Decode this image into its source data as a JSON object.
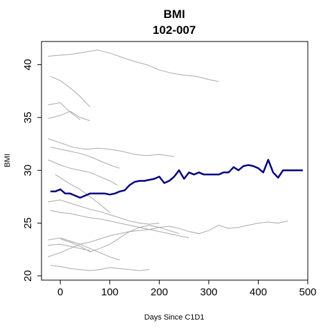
{
  "chart_data": {
    "type": "line",
    "title": "BMI",
    "subtitle": "102-007",
    "xlabel": "Days Since C1D1",
    "ylabel": "BMI",
    "xlim": [
      -38,
      500
    ],
    "ylim": [
      19.6,
      42.2
    ],
    "xticks": [
      0,
      100,
      200,
      300,
      400,
      500
    ],
    "yticks": [
      20,
      25,
      30,
      35,
      40
    ],
    "grid": false,
    "colors": {
      "highlight": "#000080",
      "background": "#a8a8a8"
    },
    "highlight_series": {
      "name": "102-007",
      "x": [
        -20,
        -10,
        0,
        10,
        20,
        30,
        40,
        50,
        60,
        70,
        80,
        90,
        100,
        110,
        120,
        130,
        140,
        150,
        160,
        170,
        180,
        190,
        200,
        210,
        220,
        230,
        240,
        250,
        260,
        270,
        280,
        290,
        300,
        310,
        320,
        330,
        340,
        350,
        360,
        370,
        380,
        390,
        400,
        410,
        420,
        430,
        440,
        450,
        460,
        470,
        480,
        490
      ],
      "y": [
        28.0,
        28.0,
        28.2,
        27.8,
        27.8,
        27.6,
        27.4,
        27.6,
        27.8,
        27.8,
        27.8,
        27.8,
        27.7,
        27.8,
        28.0,
        28.1,
        28.6,
        28.9,
        29.0,
        29.0,
        29.1,
        29.2,
        29.4,
        28.8,
        29.0,
        29.4,
        30.0,
        29.2,
        29.8,
        29.6,
        29.8,
        29.6,
        29.6,
        29.6,
        29.6,
        29.8,
        29.8,
        30.3,
        30.0,
        30.4,
        30.5,
        30.4,
        30.2,
        29.8,
        31.0,
        29.8,
        29.3,
        30.0,
        30.0,
        30.0,
        30.0,
        30.0
      ]
    },
    "background_series": [
      {
        "x": [
          -25,
          0,
          25,
          50,
          75,
          100,
          125,
          150,
          175,
          200,
          225,
          250,
          275,
          300,
          320
        ],
        "y": [
          40.8,
          40.9,
          41.0,
          41.2,
          41.4,
          41.1,
          40.7,
          40.3,
          40.0,
          39.5,
          39.2,
          39.0,
          38.9,
          38.6,
          38.4
        ]
      },
      {
        "x": [
          -20,
          0,
          20,
          40,
          60
        ],
        "y": [
          38.9,
          38.5,
          37.8,
          37.0,
          36.0
        ]
      },
      {
        "x": [
          -25,
          0,
          20,
          40
        ],
        "y": [
          36.2,
          36.4,
          35.5,
          34.8
        ]
      },
      {
        "x": [
          -25,
          0,
          20,
          40,
          60
        ],
        "y": [
          34.9,
          35.2,
          35.6,
          35.0,
          34.7
        ]
      },
      {
        "x": [
          -25,
          0,
          25,
          50,
          75,
          100,
          125,
          150,
          175,
          200,
          230
        ],
        "y": [
          33.0,
          32.6,
          32.2,
          32.0,
          32.1,
          32.0,
          31.8,
          31.5,
          31.4,
          31.5,
          31.3
        ]
      },
      {
        "x": [
          -20,
          0,
          20,
          40,
          60,
          80,
          100,
          120
        ],
        "y": [
          32.2,
          32.0,
          31.8,
          31.6,
          31.3,
          30.9,
          30.5,
          30.2
        ]
      },
      {
        "x": [
          -25,
          0,
          20,
          40,
          60,
          80,
          100,
          115
        ],
        "y": [
          31.0,
          30.5,
          30.2,
          30.0,
          29.8,
          29.4,
          29.0,
          28.6
        ]
      },
      {
        "x": [
          -10,
          0,
          20,
          40,
          60,
          80,
          100
        ],
        "y": [
          29.6,
          29.3,
          28.7,
          28.2,
          27.5,
          26.8,
          26.0
        ]
      },
      {
        "x": [
          -25,
          0,
          20,
          40,
          60,
          80,
          100,
          120,
          140,
          160,
          180,
          200
        ],
        "y": [
          27.0,
          27.2,
          26.9,
          26.6,
          26.3,
          26.1,
          25.8,
          25.5,
          25.2,
          25.0,
          24.9,
          25.0
        ]
      },
      {
        "x": [
          -20,
          0,
          20,
          40,
          60,
          80,
          100,
          120,
          140,
          160,
          180,
          200,
          220,
          240,
          260
        ],
        "y": [
          26.2,
          26.0,
          25.9,
          25.7,
          25.5,
          25.4,
          25.2,
          25.0,
          24.8,
          24.6,
          24.4,
          24.2,
          24.0,
          23.8,
          23.6
        ]
      },
      {
        "x": [
          -25,
          0,
          20,
          40,
          60,
          80,
          100,
          120,
          140,
          160,
          180,
          200,
          220,
          240,
          260,
          280,
          300,
          320,
          340,
          360,
          380,
          400,
          420,
          440,
          460
        ],
        "y": [
          21.8,
          22.2,
          22.6,
          23.0,
          23.2,
          23.5,
          23.8,
          24.0,
          24.2,
          24.3,
          24.4,
          24.6,
          24.7,
          24.5,
          24.2,
          24.0,
          24.3,
          24.8,
          24.5,
          24.6,
          24.8,
          25.0,
          25.1,
          25.0,
          25.2
        ]
      },
      {
        "x": [
          -20,
          0,
          20,
          40,
          60,
          80,
          100,
          120,
          140,
          160,
          180
        ],
        "y": [
          21.0,
          20.9,
          20.7,
          20.6,
          20.5,
          20.6,
          20.8,
          20.7,
          20.6,
          20.5,
          20.6
        ]
      },
      {
        "x": [
          -25,
          0,
          20,
          40,
          60
        ],
        "y": [
          22.9,
          23.0,
          22.8,
          22.6,
          22.4
        ]
      },
      {
        "x": [
          -25,
          0,
          20,
          40,
          60,
          80,
          100,
          120
        ],
        "y": [
          23.4,
          23.6,
          23.3,
          23.0,
          22.6,
          22.2,
          21.8,
          21.5
        ]
      },
      {
        "x": [
          0,
          20,
          40,
          60,
          80,
          100,
          120,
          140,
          160,
          180,
          200,
          220,
          240
        ],
        "y": [
          23.5,
          23.2,
          22.8,
          22.3,
          22.6,
          23.0,
          23.6,
          24.2,
          24.6,
          24.8,
          24.6,
          24.3,
          24.0
        ]
      }
    ]
  }
}
